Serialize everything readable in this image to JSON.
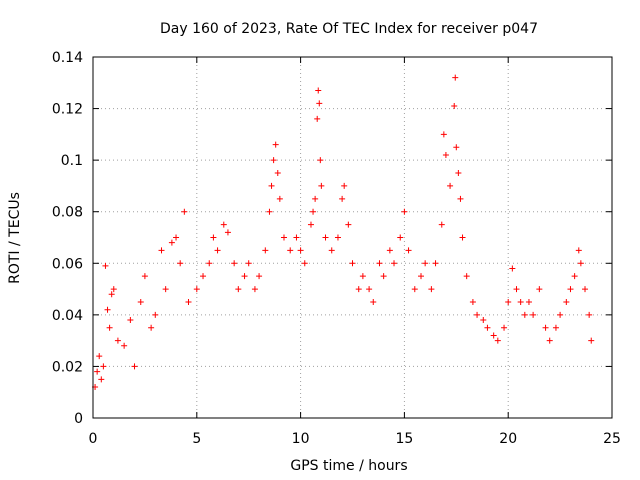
{
  "chart_data": {
    "type": "scatter",
    "title": "Day 160 of 2023, Rate Of TEC Index for receiver p047",
    "xlabel": "GPS time / hours",
    "ylabel": "ROTI / TECUs",
    "xlim": [
      0,
      25
    ],
    "ylim": [
      0,
      0.14
    ],
    "x_ticks": [
      0,
      5,
      10,
      15,
      20,
      25
    ],
    "x_tick_labels": [
      "0",
      "5",
      "10",
      "15",
      "20",
      "25"
    ],
    "y_ticks": [
      0,
      0.02,
      0.04,
      0.06,
      0.08,
      0.1,
      0.12,
      0.14
    ],
    "y_tick_labels": [
      "0",
      "0.02",
      "0.04",
      "0.06",
      "0.08",
      "0.1",
      "0.12",
      "0.14"
    ],
    "grid": true,
    "marker": "+",
    "color": "#ff0000",
    "series": [
      {
        "name": "ROTI",
        "points": [
          [
            0.1,
            0.012
          ],
          [
            0.2,
            0.018
          ],
          [
            0.3,
            0.024
          ],
          [
            0.4,
            0.015
          ],
          [
            0.5,
            0.02
          ],
          [
            0.6,
            0.059
          ],
          [
            0.7,
            0.042
          ],
          [
            0.8,
            0.035
          ],
          [
            0.9,
            0.048
          ],
          [
            1.0,
            0.05
          ],
          [
            1.2,
            0.03
          ],
          [
            1.5,
            0.028
          ],
          [
            1.8,
            0.038
          ],
          [
            2.0,
            0.02
          ],
          [
            2.3,
            0.045
          ],
          [
            2.5,
            0.055
          ],
          [
            2.8,
            0.035
          ],
          [
            3.0,
            0.04
          ],
          [
            3.3,
            0.065
          ],
          [
            3.5,
            0.05
          ],
          [
            3.8,
            0.068
          ],
          [
            4.0,
            0.07
          ],
          [
            4.2,
            0.06
          ],
          [
            4.4,
            0.08
          ],
          [
            4.6,
            0.045
          ],
          [
            5.0,
            0.05
          ],
          [
            5.3,
            0.055
          ],
          [
            5.6,
            0.06
          ],
          [
            5.8,
            0.07
          ],
          [
            6.0,
            0.065
          ],
          [
            6.3,
            0.075
          ],
          [
            6.5,
            0.072
          ],
          [
            6.8,
            0.06
          ],
          [
            7.0,
            0.05
          ],
          [
            7.3,
            0.055
          ],
          [
            7.5,
            0.06
          ],
          [
            7.8,
            0.05
          ],
          [
            8.0,
            0.055
          ],
          [
            8.3,
            0.065
          ],
          [
            8.5,
            0.08
          ],
          [
            8.6,
            0.09
          ],
          [
            8.7,
            0.1
          ],
          [
            8.8,
            0.106
          ],
          [
            8.9,
            0.095
          ],
          [
            9.0,
            0.085
          ],
          [
            9.2,
            0.07
          ],
          [
            9.5,
            0.065
          ],
          [
            9.8,
            0.07
          ],
          [
            10.0,
            0.065
          ],
          [
            10.2,
            0.06
          ],
          [
            10.5,
            0.075
          ],
          [
            10.6,
            0.08
          ],
          [
            10.7,
            0.085
          ],
          [
            10.8,
            0.116
          ],
          [
            10.85,
            0.127
          ],
          [
            10.9,
            0.122
          ],
          [
            10.95,
            0.1
          ],
          [
            11.0,
            0.09
          ],
          [
            11.2,
            0.07
          ],
          [
            11.5,
            0.065
          ],
          [
            11.8,
            0.07
          ],
          [
            12.0,
            0.085
          ],
          [
            12.1,
            0.09
          ],
          [
            12.3,
            0.075
          ],
          [
            12.5,
            0.06
          ],
          [
            12.8,
            0.05
          ],
          [
            13.0,
            0.055
          ],
          [
            13.3,
            0.05
          ],
          [
            13.5,
            0.045
          ],
          [
            13.8,
            0.06
          ],
          [
            14.0,
            0.055
          ],
          [
            14.3,
            0.065
          ],
          [
            14.5,
            0.06
          ],
          [
            14.8,
            0.07
          ],
          [
            15.0,
            0.08
          ],
          [
            15.2,
            0.065
          ],
          [
            15.5,
            0.05
          ],
          [
            15.8,
            0.055
          ],
          [
            16.0,
            0.06
          ],
          [
            16.3,
            0.05
          ],
          [
            16.5,
            0.06
          ],
          [
            16.8,
            0.075
          ],
          [
            16.9,
            0.11
          ],
          [
            17.0,
            0.102
          ],
          [
            17.2,
            0.09
          ],
          [
            17.4,
            0.121
          ],
          [
            17.45,
            0.132
          ],
          [
            17.5,
            0.105
          ],
          [
            17.6,
            0.095
          ],
          [
            17.7,
            0.085
          ],
          [
            17.8,
            0.07
          ],
          [
            18.0,
            0.055
          ],
          [
            18.3,
            0.045
          ],
          [
            18.5,
            0.04
          ],
          [
            18.8,
            0.038
          ],
          [
            19.0,
            0.035
          ],
          [
            19.3,
            0.032
          ],
          [
            19.5,
            0.03
          ],
          [
            19.8,
            0.035
          ],
          [
            20.0,
            0.045
          ],
          [
            20.2,
            0.058
          ],
          [
            20.4,
            0.05
          ],
          [
            20.6,
            0.045
          ],
          [
            20.8,
            0.04
          ],
          [
            21.0,
            0.045
          ],
          [
            21.2,
            0.04
          ],
          [
            21.5,
            0.05
          ],
          [
            21.8,
            0.035
          ],
          [
            22.0,
            0.03
          ],
          [
            22.3,
            0.035
          ],
          [
            22.5,
            0.04
          ],
          [
            22.8,
            0.045
          ],
          [
            23.0,
            0.05
          ],
          [
            23.2,
            0.055
          ],
          [
            23.4,
            0.065
          ],
          [
            23.5,
            0.06
          ],
          [
            23.7,
            0.05
          ],
          [
            23.9,
            0.04
          ],
          [
            24.0,
            0.03
          ]
        ]
      }
    ]
  }
}
